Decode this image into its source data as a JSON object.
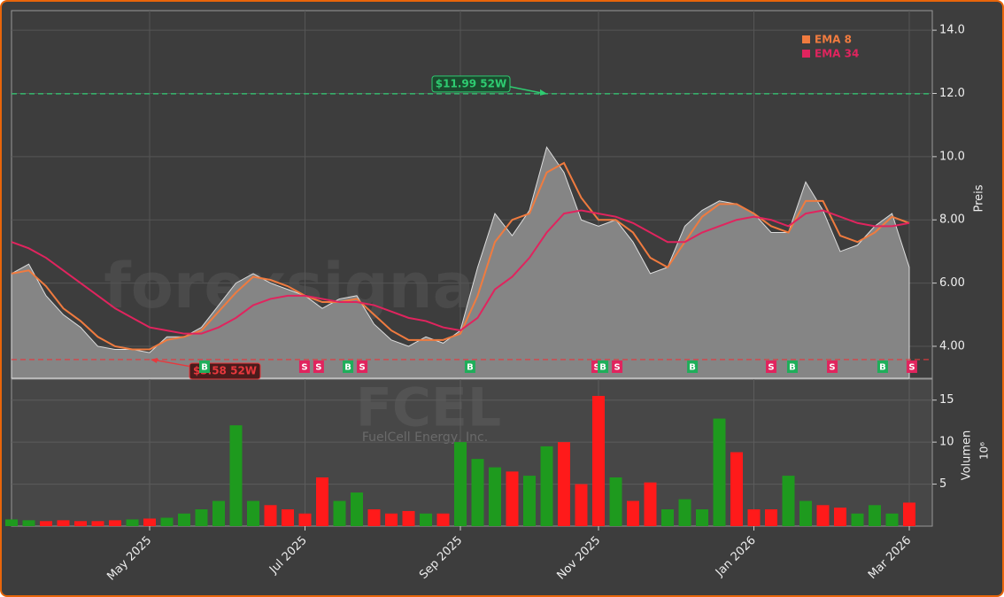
{
  "chart_data": {
    "type": "area",
    "watermark": "forexsignale.trade",
    "symbol": "FCEL",
    "company": "FuelCell Energy, Inc.",
    "categories": [
      null,
      null,
      null,
      null,
      null,
      null,
      null,
      null,
      "May 2025",
      null,
      null,
      null,
      null,
      null,
      null,
      null,
      null,
      "Jul 2025",
      null,
      null,
      null,
      null,
      null,
      null,
      null,
      null,
      "Sep 2025",
      null,
      null,
      null,
      null,
      null,
      null,
      null,
      "Nov 2025",
      null,
      null,
      null,
      null,
      null,
      null,
      null,
      null,
      "Jan 2026",
      null,
      null,
      null,
      null,
      null,
      null,
      null,
      null,
      "Mar 2026"
    ],
    "values": [
      6.3,
      6.6,
      5.6,
      5.0,
      4.6,
      4.0,
      3.9,
      3.9,
      3.8,
      4.3,
      4.3,
      4.6,
      5.3,
      6.0,
      6.3,
      6.0,
      5.8,
      5.6,
      5.2,
      5.5,
      5.6,
      4.7,
      4.2,
      4.0,
      4.3,
      4.1,
      4.5,
      6.5,
      8.2,
      7.5,
      8.3,
      10.3,
      9.5,
      8.0,
      7.8,
      8.0,
      7.3,
      6.3,
      6.5,
      7.8,
      8.3,
      8.6,
      8.5,
      8.2,
      7.6,
      7.6,
      9.2,
      8.3,
      7.0,
      7.2,
      7.8,
      8.2,
      6.5
    ],
    "color": "#858585",
    "ema": [
      {
        "name": "EMA 8",
        "color": "#f07b3f",
        "values": [
          6.3,
          6.4,
          5.9,
          5.2,
          4.8,
          4.3,
          4.0,
          3.9,
          3.9,
          4.2,
          4.3,
          4.5,
          5.1,
          5.7,
          6.2,
          6.1,
          5.9,
          5.6,
          5.4,
          5.4,
          5.5,
          5.0,
          4.5,
          4.2,
          4.2,
          4.2,
          4.4,
          5.6,
          7.3,
          8.0,
          8.2,
          9.5,
          9.8,
          8.7,
          8.0,
          8.0,
          7.6,
          6.8,
          6.5,
          7.3,
          8.1,
          8.5,
          8.5,
          8.2,
          7.8,
          7.6,
          8.6,
          8.6,
          7.5,
          7.3,
          7.6,
          8.1,
          7.9
        ]
      },
      {
        "name": "EMA 34",
        "color": "#e0245e",
        "values": [
          7.3,
          7.1,
          6.8,
          6.4,
          6.0,
          5.6,
          5.2,
          4.9,
          4.6,
          4.5,
          4.4,
          4.4,
          4.6,
          4.9,
          5.3,
          5.5,
          5.6,
          5.6,
          5.5,
          5.4,
          5.4,
          5.3,
          5.1,
          4.9,
          4.8,
          4.6,
          4.5,
          4.9,
          5.8,
          6.2,
          6.8,
          7.6,
          8.2,
          8.3,
          8.2,
          8.1,
          7.9,
          7.6,
          7.3,
          7.3,
          7.6,
          7.8,
          8.0,
          8.1,
          8.0,
          7.8,
          8.2,
          8.3,
          8.1,
          7.9,
          7.8,
          7.8,
          7.9
        ]
      }
    ],
    "ylabel": "Preis",
    "ylim": [
      2.99,
      14.62
    ],
    "yticks": [
      {
        "value": 4,
        "label": "4.00"
      },
      {
        "value": 6,
        "label": "6.00"
      },
      {
        "value": 8,
        "label": "8.00"
      },
      {
        "value": 10,
        "label": "10.0"
      },
      {
        "value": 12,
        "label": "12.0"
      },
      {
        "value": 14,
        "label": "14.0"
      }
    ],
    "grid": true,
    "high": {
      "value": 11.99,
      "label": "$11.99 52W",
      "color": "#2ecc71"
    },
    "low": {
      "value": 3.58,
      "label": "$3.58 52W",
      "color": "#e8383d"
    },
    "signals": {
      "labels": [
        "B",
        "S",
        "S",
        "B",
        "S",
        "B",
        "S",
        "B",
        "S",
        "B",
        "S",
        "B",
        "S",
        "B",
        "S"
      ],
      "x": [
        11.18,
        16.97,
        17.79,
        19.49,
        20.31,
        26.56,
        33.9,
        34.26,
        35.08,
        39.44,
        44,
        45.23,
        47.54,
        50.46,
        52.15
      ],
      "buy_color": "#1fae5a",
      "sell_color": "#e0245e"
    },
    "volume": {
      "ylabel": "Volumen",
      "unit": "10⁶",
      "ylim": [
        0,
        17.5
      ],
      "yticks": [
        5,
        10,
        15
      ],
      "up_color": "#1e9a1e",
      "down_color": "#ff1a1a",
      "values": [
        0.8,
        0.7,
        0.6,
        0.7,
        0.6,
        0.6,
        0.7,
        0.8,
        0.9,
        1.0,
        1.5,
        2.0,
        3.0,
        12.0,
        3.0,
        2.5,
        2.0,
        1.5,
        5.8,
        3.0,
        4.0,
        2.0,
        1.5,
        1.8,
        1.5,
        1.5,
        10.0,
        8.0,
        7.0,
        6.5,
        6.0,
        9.5,
        10.0,
        5.0,
        15.5,
        5.8,
        3.0,
        5.2,
        2.0,
        3.2,
        2.0,
        12.8,
        8.8,
        2.0,
        2.0,
        6.0,
        3.0,
        2.5,
        2.2,
        1.5,
        2.5,
        1.5,
        2.8
      ]
    }
  }
}
